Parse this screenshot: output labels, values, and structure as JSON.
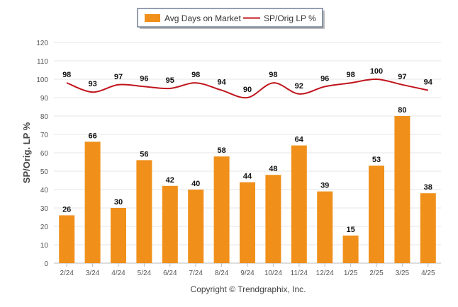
{
  "chart_data": {
    "type": "bar",
    "ylabel": "SP/Orig. LP %",
    "xlabel": "",
    "ylim": [
      0,
      120
    ],
    "yticks": [
      0,
      10,
      20,
      30,
      40,
      50,
      60,
      70,
      80,
      90,
      100,
      110,
      120
    ],
    "grid": true,
    "legend_position": "top-center",
    "categories": [
      "2/24",
      "3/24",
      "4/24",
      "5/24",
      "6/24",
      "7/24",
      "8/24",
      "9/24",
      "10/24",
      "11/24",
      "12/24",
      "1/25",
      "2/25",
      "3/25",
      "4/25"
    ],
    "series": [
      {
        "name": "Avg Days on Market",
        "type": "bar",
        "color": "#F0901A",
        "values": [
          26,
          66,
          30,
          56,
          42,
          40,
          58,
          44,
          48,
          64,
          39,
          15,
          53,
          80,
          38
        ]
      },
      {
        "name": "SP/Orig LP %",
        "type": "line",
        "color": "#C0141C",
        "values": [
          98,
          93,
          97,
          96,
          95,
          98,
          94,
          90,
          98,
          92,
          96,
          98,
          100,
          97,
          94
        ]
      }
    ]
  },
  "footer": {
    "copyright": "Copyright © Trendgraphix, Inc."
  }
}
